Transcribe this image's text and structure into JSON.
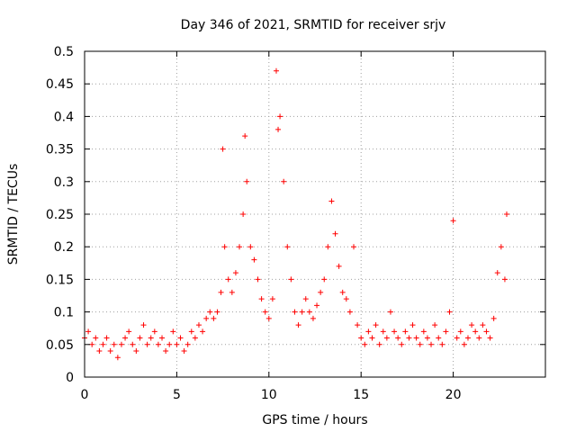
{
  "chart_data": {
    "type": "scatter",
    "title": "Day 346 of 2021, SRMTID for receiver srjv",
    "xlabel": "GPS time / hours",
    "ylabel": "SRMTID / TECUs",
    "xlim": [
      0,
      25
    ],
    "ylim": [
      0,
      0.5
    ],
    "xticks": [
      0,
      5,
      10,
      15,
      20
    ],
    "yticks": [
      0,
      0.05,
      0.1,
      0.15,
      0.2,
      0.25,
      0.3,
      0.35,
      0.4,
      0.45,
      0.5
    ],
    "xtick_labels": [
      "0",
      "5",
      "10",
      "15",
      "20"
    ],
    "ytick_labels": [
      "0",
      "0.05",
      "0.1",
      "0.15",
      "0.2",
      "0.25",
      "0.3",
      "0.35",
      "0.4",
      "0.45",
      "0.5"
    ],
    "grid": true,
    "marker": "+",
    "color": "#ff0000",
    "series": [
      {
        "name": "SRMTID",
        "x": [
          0.0,
          0.2,
          0.4,
          0.6,
          0.8,
          1.0,
          1.2,
          1.4,
          1.6,
          1.8,
          2.0,
          2.2,
          2.4,
          2.6,
          2.8,
          3.0,
          3.2,
          3.4,
          3.6,
          3.8,
          4.0,
          4.2,
          4.4,
          4.6,
          4.8,
          5.0,
          5.2,
          5.4,
          5.6,
          5.8,
          6.0,
          6.2,
          6.4,
          6.6,
          6.8,
          7.0,
          7.2,
          7.4,
          7.5,
          7.6,
          7.8,
          8.0,
          8.2,
          8.4,
          8.6,
          8.7,
          8.8,
          9.0,
          9.2,
          9.4,
          9.6,
          9.8,
          10.0,
          10.2,
          10.4,
          10.5,
          10.6,
          10.8,
          11.0,
          11.2,
          11.4,
          11.6,
          11.8,
          12.0,
          12.2,
          12.4,
          12.6,
          12.8,
          13.0,
          13.2,
          13.4,
          13.6,
          13.8,
          14.0,
          14.2,
          14.4,
          14.6,
          14.8,
          15.0,
          15.2,
          15.4,
          15.6,
          15.8,
          16.0,
          16.2,
          16.4,
          16.6,
          16.8,
          17.0,
          17.2,
          17.4,
          17.6,
          17.8,
          18.0,
          18.2,
          18.4,
          18.6,
          18.8,
          19.0,
          19.2,
          19.4,
          19.6,
          19.8,
          20.0,
          20.2,
          20.4,
          20.6,
          20.8,
          21.0,
          21.2,
          21.4,
          21.6,
          21.8,
          22.0,
          22.2,
          22.4,
          22.6,
          22.8,
          22.9
        ],
        "y": [
          0.06,
          0.07,
          0.05,
          0.06,
          0.04,
          0.05,
          0.06,
          0.04,
          0.05,
          0.03,
          0.05,
          0.06,
          0.07,
          0.05,
          0.04,
          0.06,
          0.08,
          0.05,
          0.06,
          0.07,
          0.05,
          0.06,
          0.04,
          0.05,
          0.07,
          0.05,
          0.06,
          0.04,
          0.05,
          0.07,
          0.06,
          0.08,
          0.07,
          0.09,
          0.1,
          0.09,
          0.1,
          0.13,
          0.35,
          0.2,
          0.15,
          0.13,
          0.16,
          0.2,
          0.25,
          0.37,
          0.3,
          0.2,
          0.18,
          0.15,
          0.12,
          0.1,
          0.09,
          0.12,
          0.47,
          0.38,
          0.4,
          0.3,
          0.2,
          0.15,
          0.1,
          0.08,
          0.1,
          0.12,
          0.1,
          0.09,
          0.11,
          0.13,
          0.15,
          0.2,
          0.27,
          0.22,
          0.17,
          0.13,
          0.12,
          0.1,
          0.2,
          0.08,
          0.06,
          0.05,
          0.07,
          0.06,
          0.08,
          0.05,
          0.07,
          0.06,
          0.1,
          0.07,
          0.06,
          0.05,
          0.07,
          0.06,
          0.08,
          0.06,
          0.05,
          0.07,
          0.06,
          0.05,
          0.08,
          0.06,
          0.05,
          0.07,
          0.1,
          0.24,
          0.06,
          0.07,
          0.05,
          0.06,
          0.08,
          0.07,
          0.06,
          0.08,
          0.07,
          0.06,
          0.09,
          0.16,
          0.2,
          0.15,
          0.25
        ]
      }
    ]
  }
}
